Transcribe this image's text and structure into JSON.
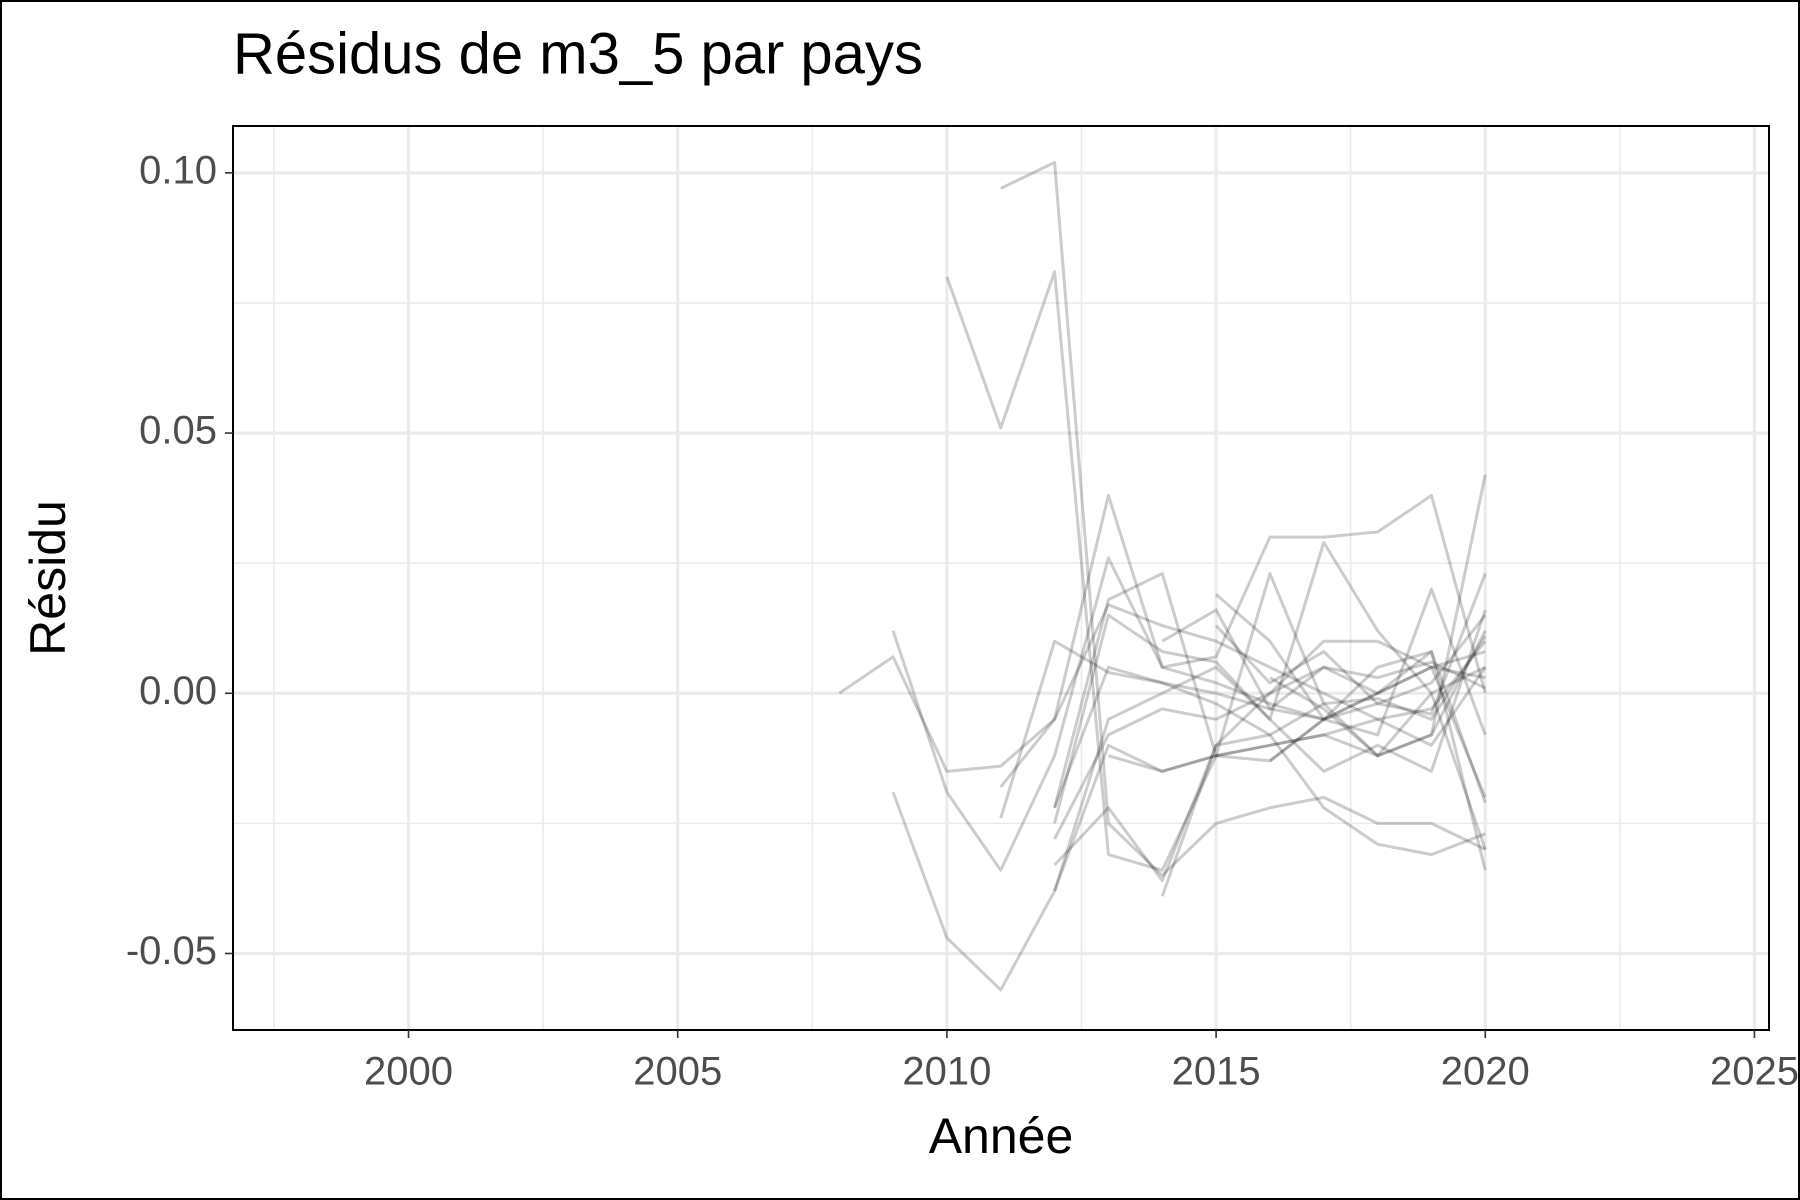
{
  "chart_data": {
    "type": "line",
    "title": "Résidus de m3_5 par pays",
    "x_label": "Année",
    "y_label": "Résidu",
    "x": [
      2008,
      2009,
      2010,
      2011,
      2012,
      2013,
      2014,
      2015,
      2016,
      2017,
      2018,
      2019,
      2020
    ],
    "xlim": [
      1996.74,
      2025.27
    ],
    "ylim": [
      -0.0647,
      0.109
    ],
    "xticks": [
      2000,
      2005,
      2010,
      2015,
      2020,
      2025
    ],
    "x_minor_ticks": [
      1997.5,
      2002.5,
      2007.5,
      2012.5,
      2017.5,
      2022.5
    ],
    "yticks": [
      {
        "value": -0.05,
        "label": "-0.05"
      },
      {
        "value": 0,
        "label": "0.00"
      },
      {
        "value": 0.05,
        "label": "0.05"
      },
      {
        "value": 0.1,
        "label": "0.10"
      }
    ],
    "y_minor_ticks": [
      -0.025,
      0.025,
      0.075
    ],
    "grid": true,
    "line_opacity": 0.2,
    "series": [
      {
        "color": "#000000",
        "values": [
          null,
          null,
          null,
          0.097,
          0.102,
          -0.025,
          -0.035,
          -0.025,
          -0.022,
          -0.02,
          -0.025,
          -0.025,
          -0.03
        ]
      },
      {
        "color": "#000000",
        "values": [
          null,
          null,
          0.08,
          0.051,
          0.081,
          -0.031,
          -0.034,
          -0.012,
          -0.01,
          -0.008,
          -0.012,
          -0.008,
          0.012
        ]
      },
      {
        "color": "#000000",
        "values": [
          0.0,
          0.007,
          -0.015,
          -0.014,
          -0.005,
          0.017,
          0.013,
          0.01,
          0.005,
          0.0,
          -0.005,
          -0.003,
          0.01
        ]
      },
      {
        "color": "#000000",
        "values": [
          null,
          0.012,
          -0.019,
          -0.034,
          -0.012,
          0.026,
          0.005,
          0.002,
          -0.002,
          -0.005,
          0.0,
          0.005,
          -0.02
        ]
      },
      {
        "color": "#000000",
        "values": [
          null,
          -0.019,
          -0.047,
          -0.057,
          -0.038,
          -0.01,
          -0.015,
          -0.012,
          -0.01,
          -0.008,
          -0.005,
          -0.01,
          0.005
        ]
      },
      {
        "color": "#000000",
        "values": [
          null,
          null,
          null,
          -0.018,
          -0.005,
          0.038,
          0.005,
          0.007,
          0.03,
          0.03,
          0.031,
          0.038,
          0.0
        ]
      },
      {
        "color": "#000000",
        "values": [
          null,
          null,
          null,
          -0.024,
          0.01,
          0.004,
          0.002,
          0.0,
          -0.003,
          -0.005,
          -0.002,
          0.002,
          0.015
        ]
      },
      {
        "color": "#000000",
        "values": [
          null,
          null,
          null,
          null,
          -0.022,
          0.018,
          0.023,
          -0.012,
          0.023,
          -0.002,
          -0.012,
          -0.008,
          0.042
        ]
      },
      {
        "color": "#000000",
        "values": [
          null,
          null,
          null,
          null,
          -0.025,
          0.015,
          0.008,
          0.006,
          -0.005,
          -0.015,
          -0.01,
          -0.015,
          0.016
        ]
      },
      {
        "color": "#000000",
        "values": [
          null,
          null,
          null,
          null,
          -0.033,
          -0.022,
          -0.036,
          -0.01,
          0.0,
          0.005,
          0.0,
          0.008,
          -0.021
        ]
      },
      {
        "color": "#000000",
        "values": [
          null,
          null,
          null,
          null,
          -0.038,
          -0.005,
          0.0,
          0.005,
          -0.005,
          0.029,
          0.012,
          0.0,
          -0.03
        ]
      },
      {
        "color": "#000000",
        "values": [
          null,
          null,
          null,
          null,
          -0.022,
          0.005,
          0.002,
          -0.002,
          -0.008,
          -0.022,
          -0.029,
          -0.031,
          -0.027
        ]
      },
      {
        "color": "#000000",
        "values": [
          null,
          null,
          null,
          null,
          -0.028,
          -0.008,
          -0.003,
          -0.005,
          0.0,
          0.01,
          0.01,
          0.005,
          0.008
        ]
      },
      {
        "color": "#000000",
        "values": [
          null,
          null,
          null,
          null,
          null,
          -0.012,
          -0.015,
          -0.012,
          -0.013,
          -0.005,
          0.0,
          0.005,
          0.003
        ]
      },
      {
        "color": "#000000",
        "values": [
          null,
          null,
          null,
          null,
          null,
          null,
          null,
          0.019,
          0.01,
          -0.005,
          0.005,
          0.008,
          -0.034
        ]
      },
      {
        "color": "#000000",
        "values": [
          null,
          null,
          null,
          null,
          null,
          null,
          null,
          null,
          -0.013,
          -0.005,
          -0.008,
          0.02,
          -0.008
        ]
      },
      {
        "color": "#000000",
        "values": [
          null,
          null,
          null,
          null,
          null,
          null,
          null,
          0.013,
          0.002,
          0.008,
          -0.002,
          -0.004,
          0.023
        ]
      },
      {
        "color": "#000000",
        "values": [
          null,
          null,
          null,
          null,
          null,
          null,
          null,
          null,
          0.003,
          -0.003,
          -0.012,
          0.0,
          0.005
        ]
      },
      {
        "color": "#000000",
        "values": [
          null,
          null,
          null,
          null,
          null,
          null,
          0.01,
          0.016,
          -0.003,
          0.005,
          0.003,
          0.006,
          0.001
        ]
      },
      {
        "color": "#000000",
        "values": [
          null,
          null,
          null,
          null,
          null,
          null,
          -0.039,
          -0.01,
          -0.008,
          -0.002,
          -0.001,
          -0.005,
          0.011
        ]
      }
    ]
  }
}
